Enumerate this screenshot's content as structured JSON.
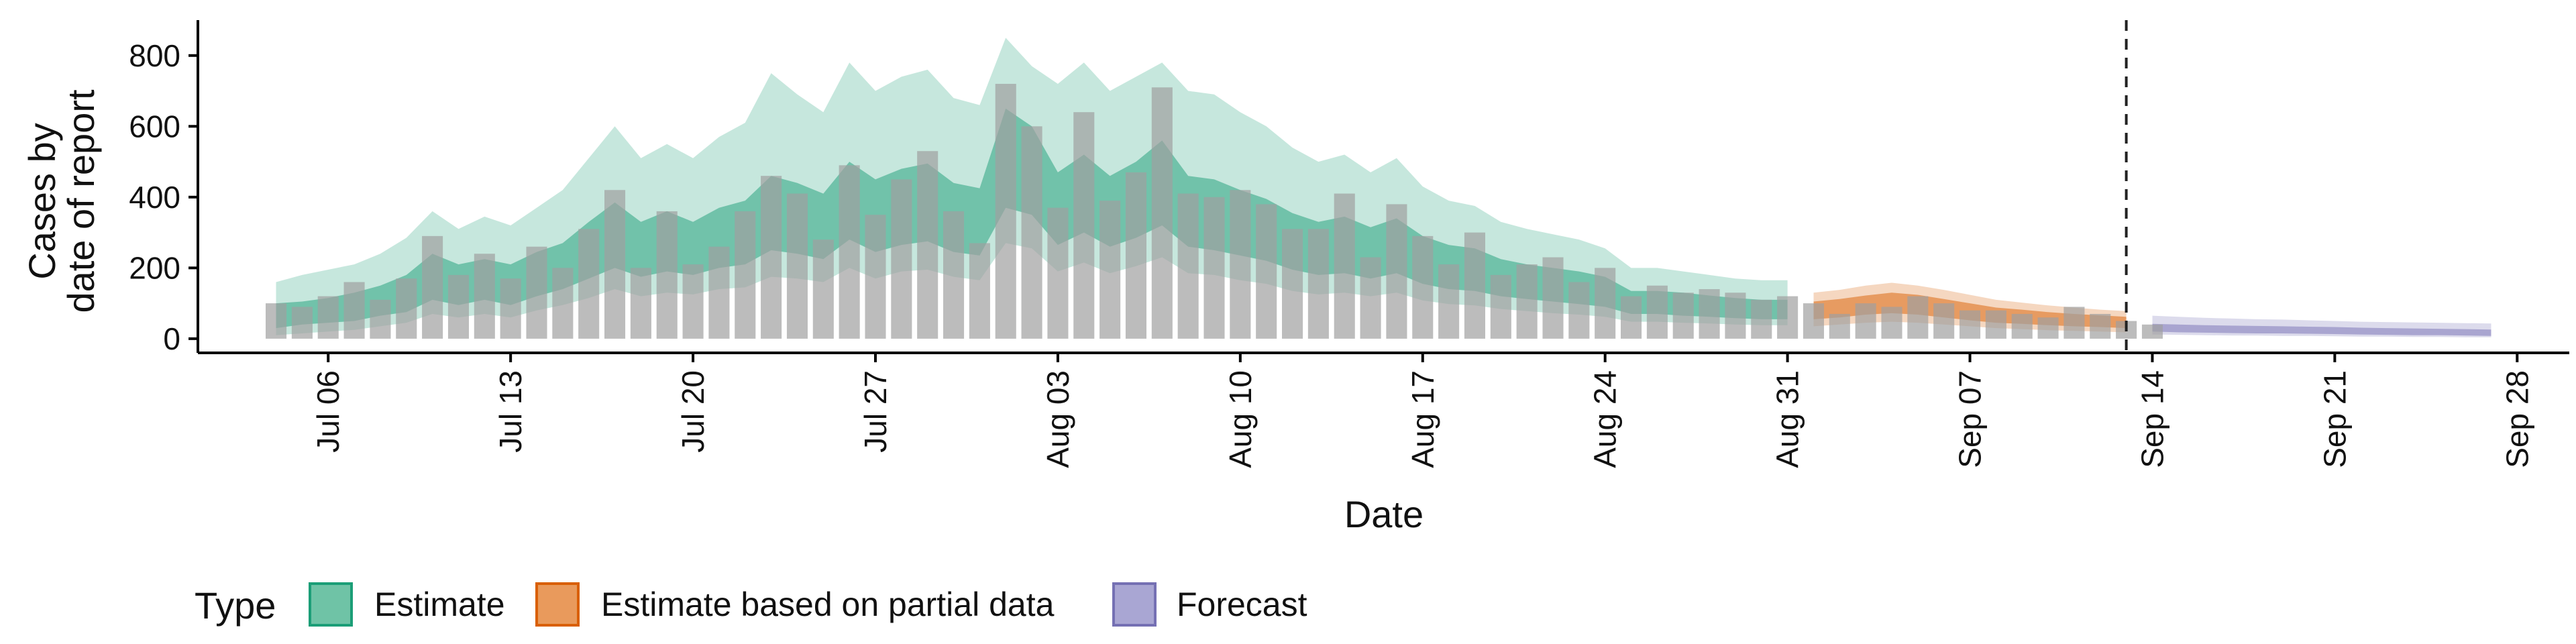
{
  "chart_data": {
    "type": "bar",
    "xlabel": "Date",
    "ylabel_lines": [
      "Cases by",
      "date of report"
    ],
    "ylim": [
      -40,
      900
    ],
    "yticks": [
      0,
      200,
      400,
      600,
      800
    ],
    "x_start": "2020-07-04",
    "xlim": [
      "2020-07-01",
      "2020-09-30"
    ],
    "xticks": [
      {
        "date": "2020-07-06",
        "label": "Jul 06"
      },
      {
        "date": "2020-07-13",
        "label": "Jul 13"
      },
      {
        "date": "2020-07-20",
        "label": "Jul 20"
      },
      {
        "date": "2020-07-27",
        "label": "Jul 27"
      },
      {
        "date": "2020-08-03",
        "label": "Aug 03"
      },
      {
        "date": "2020-08-10",
        "label": "Aug 10"
      },
      {
        "date": "2020-08-17",
        "label": "Aug 17"
      },
      {
        "date": "2020-08-24",
        "label": "Aug 24"
      },
      {
        "date": "2020-08-31",
        "label": "Aug 31"
      },
      {
        "date": "2020-09-07",
        "label": "Sep 07"
      },
      {
        "date": "2020-09-14",
        "label": "Sep 14"
      },
      {
        "date": "2020-09-21",
        "label": "Sep 21"
      },
      {
        "date": "2020-09-28",
        "label": "Sep 28"
      }
    ],
    "forecast_line_date": "2020-09-13",
    "grid": false,
    "reported_cases": [
      100,
      90,
      120,
      160,
      110,
      170,
      290,
      180,
      240,
      170,
      260,
      200,
      310,
      420,
      200,
      360,
      210,
      260,
      360,
      460,
      410,
      280,
      490,
      350,
      450,
      530,
      360,
      270,
      720,
      600,
      370,
      640,
      390,
      470,
      710,
      410,
      400,
      420,
      380,
      310,
      310,
      410,
      230,
      380,
      290,
      210,
      300,
      180,
      210,
      230,
      160,
      200,
      120,
      150,
      130,
      140,
      130,
      110,
      120,
      100,
      70,
      100,
      90,
      120,
      100,
      80,
      80,
      70,
      60,
      90,
      70,
      50,
      40
    ],
    "series": [
      {
        "name": "Estimate",
        "color": "#1b9e77",
        "x_range": [
          "2020-07-04",
          "2020-08-31"
        ],
        "median": [
          60,
          70,
          80,
          90,
          110,
          130,
          180,
          150,
          170,
          150,
          180,
          200,
          250,
          290,
          250,
          270,
          250,
          280,
          290,
          350,
          330,
          310,
          380,
          340,
          360,
          370,
          330,
          320,
          500,
          470,
          360,
          400,
          350,
          380,
          430,
          350,
          340,
          320,
          300,
          270,
          250,
          260,
          240,
          260,
          220,
          200,
          190,
          170,
          160,
          150,
          140,
          130,
          100,
          100,
          95,
          90,
          85,
          80,
          80
        ],
        "inner_lower": [
          30,
          40,
          45,
          50,
          65,
          75,
          110,
          95,
          110,
          95,
          120,
          140,
          170,
          200,
          175,
          190,
          180,
          200,
          210,
          250,
          240,
          225,
          280,
          245,
          265,
          275,
          245,
          235,
          370,
          350,
          265,
          300,
          260,
          285,
          320,
          260,
          250,
          235,
          220,
          195,
          180,
          185,
          170,
          185,
          155,
          140,
          135,
          120,
          112,
          105,
          98,
          90,
          70,
          70,
          65,
          62,
          58,
          55,
          55
        ],
        "inner_upper": [
          100,
          105,
          115,
          130,
          150,
          180,
          240,
          210,
          225,
          210,
          245,
          270,
          330,
          385,
          330,
          360,
          330,
          370,
          390,
          460,
          440,
          410,
          500,
          450,
          480,
          495,
          440,
          425,
          650,
          600,
          470,
          520,
          460,
          500,
          560,
          460,
          450,
          420,
          395,
          355,
          330,
          345,
          315,
          340,
          290,
          265,
          255,
          225,
          210,
          200,
          190,
          175,
          135,
          135,
          130,
          122,
          115,
          110,
          110
        ],
        "outer_lower": [
          10,
          15,
          20,
          25,
          35,
          45,
          70,
          60,
          70,
          60,
          80,
          95,
          115,
          140,
          120,
          130,
          125,
          140,
          145,
          175,
          170,
          160,
          200,
          170,
          190,
          195,
          175,
          165,
          270,
          255,
          190,
          215,
          185,
          205,
          230,
          185,
          180,
          165,
          155,
          135,
          125,
          130,
          120,
          130,
          108,
          98,
          94,
          84,
          78,
          72,
          68,
          62,
          48,
          48,
          45,
          43,
          40,
          38,
          38
        ],
        "outer_upper": [
          160,
          180,
          195,
          210,
          240,
          285,
          360,
          310,
          345,
          320,
          370,
          420,
          510,
          600,
          510,
          550,
          510,
          570,
          610,
          750,
          690,
          640,
          780,
          700,
          740,
          760,
          680,
          660,
          850,
          770,
          720,
          780,
          700,
          740,
          780,
          700,
          690,
          640,
          600,
          540,
          500,
          520,
          470,
          510,
          430,
          390,
          375,
          330,
          310,
          295,
          280,
          255,
          200,
          200,
          190,
          180,
          170,
          165,
          165
        ]
      },
      {
        "name": "Estimate based on partial data",
        "color": "#d95f02",
        "x_range": [
          "2020-09-01",
          "2020-09-13"
        ],
        "median": [
          80,
          85,
          95,
          100,
          95,
          85,
          75,
          65,
          60,
          55,
          50,
          48,
          45
        ],
        "inner_lower": [
          55,
          60,
          68,
          72,
          68,
          60,
          52,
          45,
          42,
          38,
          35,
          33,
          30
        ],
        "inner_upper": [
          105,
          112,
          122,
          130,
          124,
          112,
          100,
          88,
          82,
          75,
          70,
          66,
          62
        ],
        "outer_lower": [
          35,
          40,
          45,
          48,
          45,
          40,
          35,
          30,
          27,
          24,
          22,
          20,
          18
        ],
        "outer_upper": [
          130,
          138,
          150,
          158,
          150,
          138,
          124,
          110,
          102,
          94,
          88,
          82,
          78
        ]
      },
      {
        "name": "Forecast",
        "color": "#7570b3",
        "x_range": [
          "2020-09-14",
          "2020-09-27"
        ],
        "median": [
          30,
          28,
          26,
          25,
          24,
          24,
          23,
          22,
          20,
          19,
          18,
          17,
          16,
          15
        ],
        "inner_lower": [
          20,
          18,
          17,
          16,
          15,
          15,
          14,
          13,
          12,
          11,
          10,
          10,
          9,
          8
        ],
        "inner_upper": [
          42,
          40,
          38,
          37,
          36,
          35,
          34,
          33,
          31,
          30,
          29,
          28,
          27,
          26
        ],
        "outer_lower": [
          12,
          11,
          10,
          9,
          9,
          8,
          8,
          7,
          6,
          6,
          5,
          5,
          4,
          4
        ],
        "outer_upper": [
          65,
          62,
          59,
          57,
          55,
          54,
          52,
          50,
          48,
          47,
          46,
          45,
          44,
          43
        ]
      }
    ],
    "bar_color": "#a0a0a0",
    "legend": {
      "title": "Type",
      "placement": "bottom",
      "items": [
        {
          "label": "Estimate",
          "fill": "#6fc3a6",
          "stroke": "#1b9e77"
        },
        {
          "label": "Estimate based on partial data",
          "fill": "#e99a5c",
          "stroke": "#d95f02"
        },
        {
          "label": "Forecast",
          "fill": "#a9a6d3",
          "stroke": "#7570b3"
        }
      ]
    }
  }
}
